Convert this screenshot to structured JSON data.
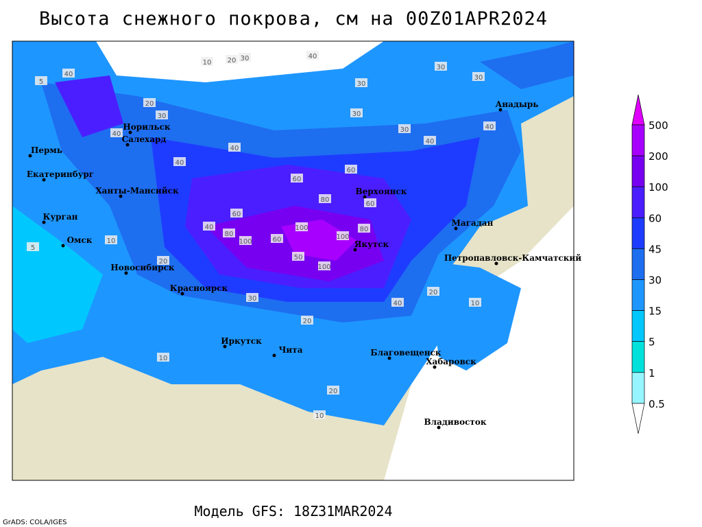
{
  "title": "Высота снежного покрова, см на 00Z01APR2024",
  "subtitle": "Модель GFS: 18Z31MAR2024",
  "credit": "GrADS: COLA/IGES",
  "cities": [
    "Анадырь",
    "Норильск",
    "Салехард",
    "Пермь",
    "Екатеринбург",
    "Ханты-Мансийск",
    "Верхоянск",
    "Курган",
    "Омск",
    "Якутск",
    "Магадан",
    "Новосибирск",
    "Петропавловск-Камчатский",
    "Красноярск",
    "Иркутск",
    "Чита",
    "Благовещенск",
    "Хабаровск",
    "Владивосток"
  ],
  "contour_labels": [
    10,
    20,
    30,
    40,
    30,
    30,
    30,
    40,
    40,
    40,
    60,
    60,
    80,
    100,
    100,
    100,
    80,
    80,
    60,
    60,
    40,
    40,
    40,
    30,
    30,
    20,
    20,
    10,
    10,
    10,
    5,
    5,
    20,
    10,
    20,
    40,
    30,
    20,
    40,
    30,
    60,
    50,
    100
  ],
  "colorbar": {
    "levels": [
      500,
      200,
      100,
      60,
      45,
      30,
      15,
      5,
      1,
      0.5
    ],
    "colors": [
      "#e000ff",
      "#a800ff",
      "#7800f0",
      "#4b1eff",
      "#1e3cff",
      "#1e6ef0",
      "#1e96ff",
      "#00c8ff",
      "#00e1dc",
      "#96f5ff",
      "#ffffff"
    ]
  }
}
